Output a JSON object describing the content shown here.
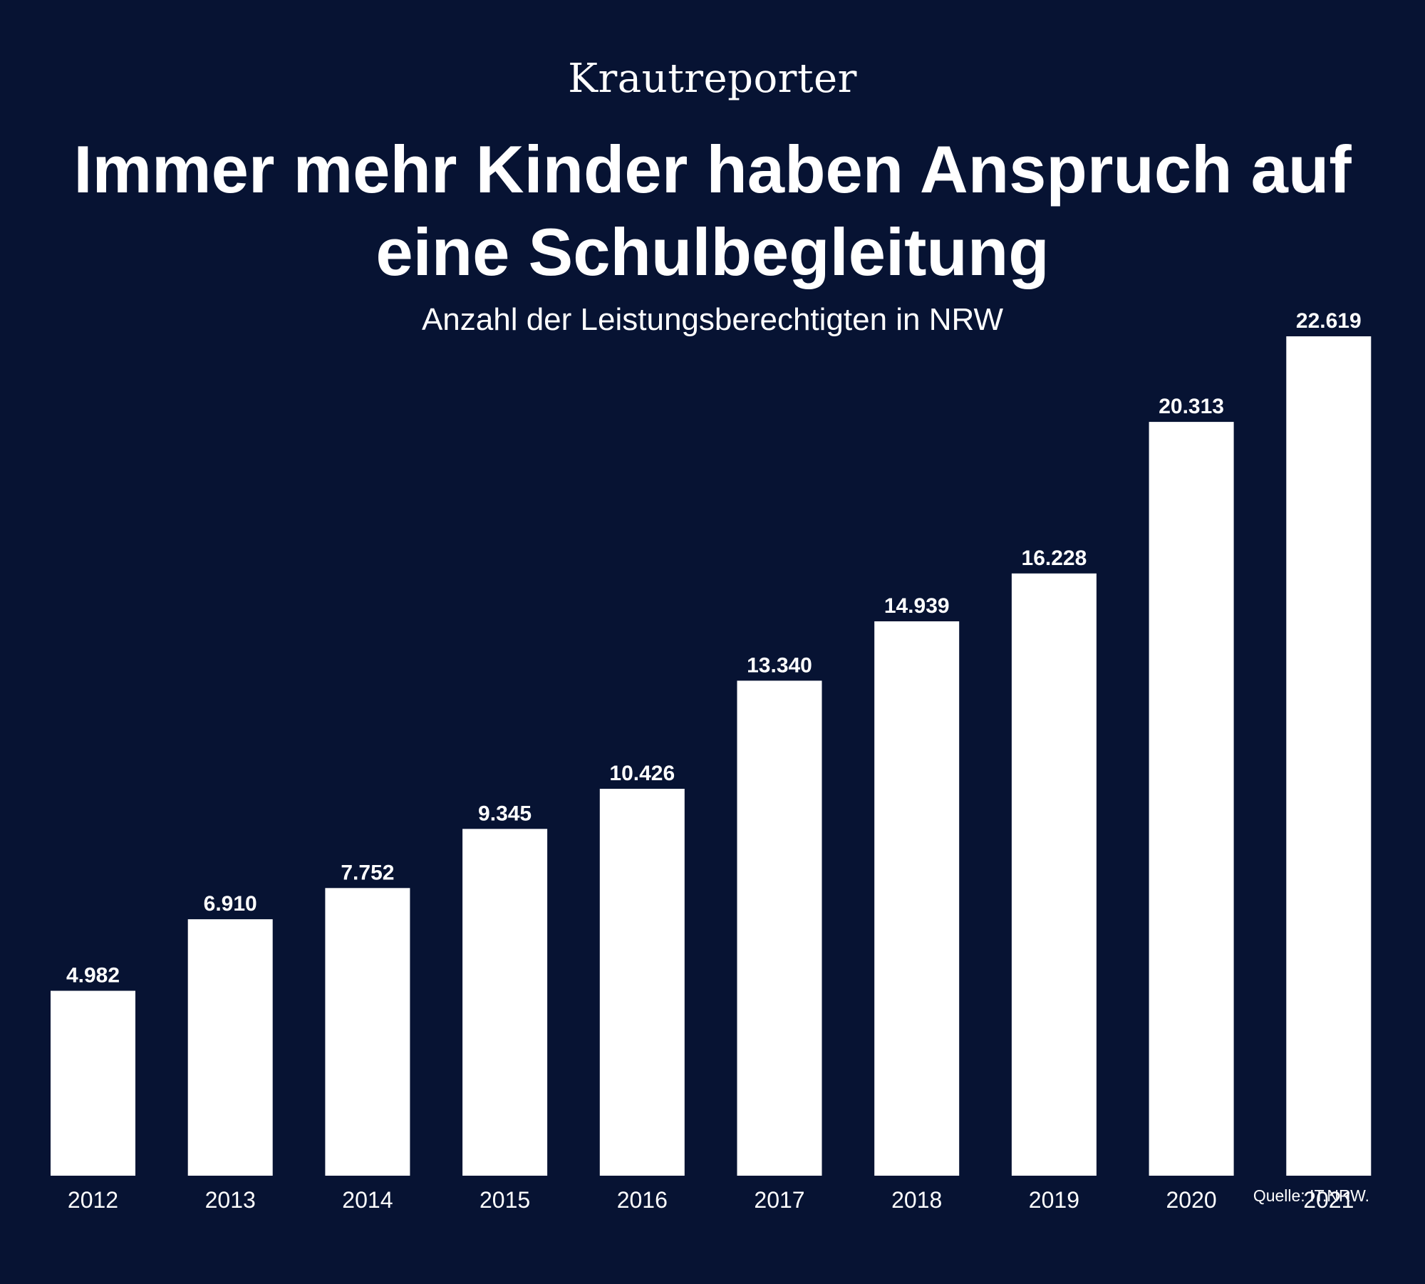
{
  "brand": "Krautreporter",
  "title": "Immer mehr Kinder haben Anspruch auf eine Schulbegleitung",
  "subtitle": "Anzahl der Leistungsberechtigten in NRW",
  "source": "Quelle: IT.NRW.",
  "colors": {
    "background": "#071333",
    "bars": "#ffffff",
    "text": "#ffffff"
  },
  "chart_data": {
    "type": "bar",
    "title": "Immer mehr Kinder haben Anspruch auf eine Schulbegleitung",
    "subtitle": "Anzahl der Leistungsberechtigten in NRW",
    "categories": [
      "2012",
      "2013",
      "2014",
      "2015",
      "2016",
      "2017",
      "2018",
      "2019",
      "2020",
      "2021"
    ],
    "values": [
      4982,
      6910,
      7752,
      9345,
      10426,
      13340,
      14939,
      16228,
      20313,
      22619
    ],
    "value_labels": [
      "4.982",
      "6.910",
      "7.752",
      "9.345",
      "10.426",
      "13.340",
      "14.939",
      "16.228",
      "20.313",
      "22.619"
    ],
    "ylim": [
      0,
      22619
    ],
    "grid": false,
    "legend": "none"
  }
}
